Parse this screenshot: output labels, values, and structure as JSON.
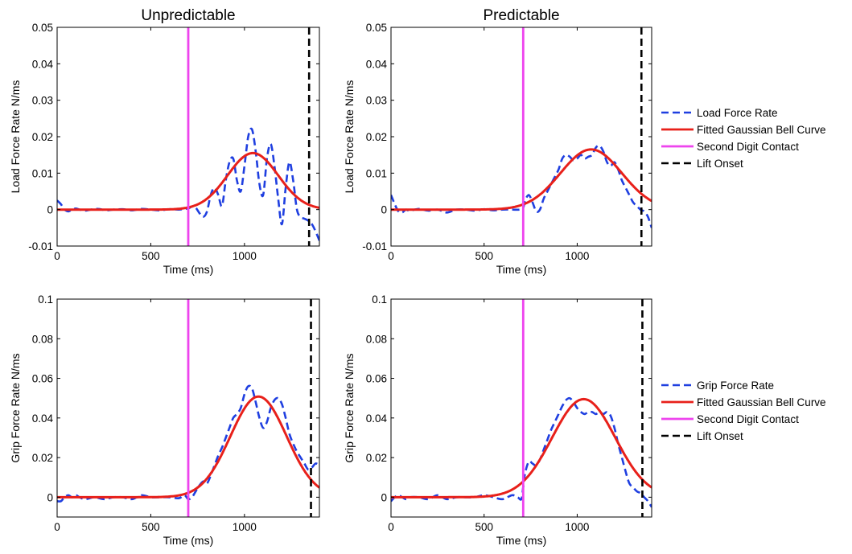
{
  "chart_data": [
    {
      "type": "line",
      "title": "Unpredictable",
      "xlabel": "Time (ms)",
      "ylabel": "Load Force Rate N/ms",
      "xlim": [
        0,
        1400
      ],
      "ylim": [
        -0.01,
        0.05
      ],
      "xticks": [
        0,
        500,
        1000
      ],
      "xtick_labels": [
        "0",
        "500",
        "1000"
      ],
      "yticks": [
        -0.01,
        0,
        0.01,
        0.02,
        0.03,
        0.04,
        0.05
      ],
      "ytick_labels": [
        "-0.01",
        "0",
        "0.01",
        "0.02",
        "0.03",
        "0.04",
        "0.05"
      ],
      "series": [
        {
          "name": "Load Force Rate",
          "color": "#1f3fe0",
          "style": "dashed",
          "x": [
            0,
            20,
            40,
            60,
            80,
            100,
            120,
            150,
            180,
            220,
            260,
            300,
            350,
            400,
            450,
            500,
            550,
            600,
            650,
            680,
            700,
            720,
            740,
            760,
            780,
            800,
            820,
            840,
            860,
            880,
            900,
            920,
            940,
            960,
            980,
            1000,
            1020,
            1040,
            1060,
            1080,
            1100,
            1120,
            1140,
            1160,
            1180,
            1200,
            1220,
            1240,
            1260,
            1280,
            1300,
            1320,
            1340,
            1360,
            1380,
            1400
          ],
          "y": [
            0.0025,
            0.0015,
            0.0,
            -0.0005,
            0.0,
            0.0003,
            0.0,
            -0.0003,
            0.0,
            0.0002,
            -0.0002,
            0.0,
            0.0001,
            -0.0002,
            0.0002,
            0.0,
            -0.0002,
            0.0001,
            0.0,
            0.0002,
            0.0003,
            0.0008,
            0.0005,
            -0.001,
            -0.002,
            -0.0005,
            0.004,
            0.006,
            0.004,
            0.001,
            0.008,
            0.013,
            0.014,
            0.008,
            0.005,
            0.012,
            0.02,
            0.022,
            0.016,
            0.007,
            0.004,
            0.014,
            0.018,
            0.012,
            0.003,
            -0.004,
            0.006,
            0.013,
            0.008,
            0.0,
            -0.002,
            -0.0025,
            -0.003,
            -0.004,
            -0.006,
            -0.0085
          ]
        },
        {
          "name": "Fitted Gaussian Bell Curve",
          "color": "#e8201a",
          "style": "solid",
          "gauss": {
            "amp": 0.0155,
            "mu": 1045,
            "sigma": 135,
            "offset": 0
          }
        },
        {
          "name": "Second Digit Contact",
          "color": "#ee44ee",
          "style": "solid",
          "vline": 700
        },
        {
          "name": "Lift Onset",
          "color": "#000000",
          "style": "dashed",
          "vline": 1345
        }
      ],
      "legend": "none"
    },
    {
      "type": "line",
      "title": "Predictable",
      "xlabel": "Time (ms)",
      "ylabel": "Load Force Rate N/ms",
      "xlim": [
        0,
        1400
      ],
      "ylim": [
        -0.01,
        0.05
      ],
      "xticks": [
        0,
        500,
        1000
      ],
      "xtick_labels": [
        "0",
        "500",
        "1000"
      ],
      "yticks": [
        -0.01,
        0,
        0.01,
        0.02,
        0.03,
        0.04,
        0.05
      ],
      "ytick_labels": [
        "-0.01",
        "0",
        "0.01",
        "0.02",
        "0.03",
        "0.04",
        "0.05"
      ],
      "series": [
        {
          "name": "Load Force Rate",
          "color": "#1f3fe0",
          "style": "dashed",
          "x": [
            0,
            20,
            40,
            60,
            80,
            100,
            150,
            200,
            250,
            300,
            350,
            400,
            450,
            500,
            550,
            600,
            650,
            690,
            710,
            720,
            740,
            760,
            780,
            800,
            820,
            840,
            860,
            880,
            900,
            920,
            940,
            960,
            980,
            1000,
            1020,
            1040,
            1060,
            1080,
            1100,
            1120,
            1140,
            1160,
            1180,
            1200,
            1220,
            1240,
            1260,
            1280,
            1300,
            1320,
            1340,
            1360,
            1380,
            1400
          ],
          "y": [
            0.004,
            0.0015,
            -0.0005,
            -0.0008,
            0.0,
            -0.0003,
            0.0002,
            -0.0003,
            0.0,
            -0.0008,
            0.0,
            0.0,
            -0.0003,
            0.0001,
            -0.0002,
            0.0,
            0.0,
            0.0,
            0.0005,
            0.0025,
            0.004,
            0.002,
            -0.0005,
            0.0,
            0.003,
            0.005,
            0.007,
            0.009,
            0.011,
            0.014,
            0.015,
            0.0145,
            0.0135,
            0.014,
            0.015,
            0.014,
            0.0145,
            0.015,
            0.017,
            0.0175,
            0.016,
            0.013,
            0.012,
            0.013,
            0.011,
            0.008,
            0.006,
            0.004,
            0.002,
            0.001,
            0.0,
            -0.0005,
            -0.002,
            -0.005
          ]
        },
        {
          "name": "Fitted Gaussian Bell Curve",
          "color": "#e8201a",
          "style": "solid",
          "gauss": {
            "amp": 0.0165,
            "mu": 1075,
            "sigma": 165,
            "offset": 0
          }
        },
        {
          "name": "Second Digit Contact",
          "color": "#ee44ee",
          "style": "solid",
          "vline": 710
        },
        {
          "name": "Lift Onset",
          "color": "#000000",
          "style": "dashed",
          "vline": 1345
        }
      ],
      "legend": "right"
    },
    {
      "type": "line",
      "title": "",
      "xlabel": "Time (ms)",
      "ylabel": "Grip Force Rate N/ms",
      "xlim": [
        0,
        1400
      ],
      "ylim": [
        -0.01,
        0.1
      ],
      "xticks": [
        0,
        500,
        1000
      ],
      "xtick_labels": [
        "0",
        "500",
        "1000"
      ],
      "yticks": [
        0,
        0.02,
        0.04,
        0.06,
        0.08,
        0.1
      ],
      "ytick_labels": [
        "0",
        "0.02",
        "0.04",
        "0.06",
        "0.08",
        "0.1"
      ],
      "series": [
        {
          "name": "Grip Force Rate",
          "color": "#1f3fe0",
          "style": "dashed",
          "x": [
            0,
            20,
            40,
            60,
            80,
            100,
            120,
            150,
            200,
            250,
            300,
            350,
            400,
            450,
            500,
            550,
            600,
            650,
            680,
            700,
            720,
            740,
            760,
            780,
            800,
            820,
            840,
            860,
            880,
            900,
            920,
            940,
            960,
            980,
            1000,
            1020,
            1040,
            1060,
            1080,
            1100,
            1120,
            1140,
            1160,
            1180,
            1200,
            1220,
            1240,
            1260,
            1280,
            1300,
            1320,
            1340,
            1360,
            1380,
            1400
          ],
          "y": [
            -0.002,
            -0.002,
            0.0,
            0.001,
            0.0,
            0.001,
            0.0,
            -0.001,
            0.0,
            -0.001,
            0.0,
            0.0,
            -0.001,
            0.001,
            0.0,
            0.0,
            0.0,
            -0.0005,
            0.001,
            -0.001,
            0.0,
            0.003,
            0.006,
            0.008,
            0.007,
            0.011,
            0.016,
            0.021,
            0.025,
            0.03,
            0.035,
            0.04,
            0.042,
            0.045,
            0.052,
            0.056,
            0.055,
            0.048,
            0.04,
            0.035,
            0.038,
            0.045,
            0.049,
            0.05,
            0.047,
            0.04,
            0.032,
            0.027,
            0.023,
            0.02,
            0.017,
            0.014,
            0.015,
            0.017,
            0.016
          ]
        },
        {
          "name": "Fitted Gaussian Bell Curve",
          "color": "#e8201a",
          "style": "solid",
          "gauss": {
            "amp": 0.0508,
            "mu": 1075,
            "sigma": 150,
            "offset": 0
          }
        },
        {
          "name": "Second Digit Contact",
          "color": "#ee44ee",
          "style": "solid",
          "vline": 700
        },
        {
          "name": "Lift Onset",
          "color": "#000000",
          "style": "dashed",
          "vline": 1355
        }
      ],
      "legend": "none"
    },
    {
      "type": "line",
      "title": "",
      "xlabel": "Time (ms)",
      "ylabel": "Grip Force Rate N/ms",
      "xlim": [
        0,
        1400
      ],
      "ylim": [
        -0.01,
        0.1
      ],
      "xticks": [
        0,
        500,
        1000
      ],
      "xtick_labels": [
        "0",
        "500",
        "1000"
      ],
      "yticks": [
        0,
        0.02,
        0.04,
        0.06,
        0.08,
        0.1
      ],
      "ytick_labels": [
        "0",
        "0.02",
        "0.04",
        "0.06",
        "0.08",
        "0.1"
      ],
      "series": [
        {
          "name": "Grip Force Rate",
          "color": "#1f3fe0",
          "style": "dashed",
          "x": [
            0,
            20,
            40,
            60,
            80,
            100,
            150,
            200,
            250,
            300,
            350,
            400,
            450,
            500,
            550,
            600,
            650,
            680,
            700,
            710,
            720,
            740,
            760,
            780,
            800,
            820,
            840,
            860,
            880,
            900,
            920,
            940,
            960,
            980,
            1000,
            1020,
            1040,
            1060,
            1080,
            1100,
            1120,
            1140,
            1160,
            1180,
            1200,
            1220,
            1240,
            1260,
            1280,
            1300,
            1320,
            1340,
            1360,
            1380,
            1400
          ],
          "y": [
            -0.002,
            0.0,
            0.001,
            0.0,
            -0.001,
            0.0,
            0.0,
            -0.001,
            0.001,
            -0.001,
            0.0,
            0.0,
            0.0,
            0.001,
            0.0,
            -0.001,
            0.001,
            0.0,
            -0.001,
            0.005,
            0.012,
            0.018,
            0.017,
            0.016,
            0.019,
            0.024,
            0.029,
            0.034,
            0.038,
            0.042,
            0.046,
            0.049,
            0.05,
            0.048,
            0.045,
            0.043,
            0.042,
            0.043,
            0.043,
            0.042,
            0.043,
            0.042,
            0.043,
            0.041,
            0.035,
            0.027,
            0.02,
            0.013,
            0.007,
            0.005,
            0.003,
            0.002,
            0.0,
            -0.002,
            -0.005
          ]
        },
        {
          "name": "Fitted Gaussian Bell Curve",
          "color": "#e8201a",
          "style": "solid",
          "gauss": {
            "amp": 0.0495,
            "mu": 1035,
            "sigma": 170,
            "offset": 0
          }
        },
        {
          "name": "Second Digit Contact",
          "color": "#ee44ee",
          "style": "solid",
          "vline": 710
        },
        {
          "name": "Lift Onset",
          "color": "#000000",
          "style": "dashed",
          "vline": 1350
        }
      ],
      "legend": "right"
    }
  ]
}
